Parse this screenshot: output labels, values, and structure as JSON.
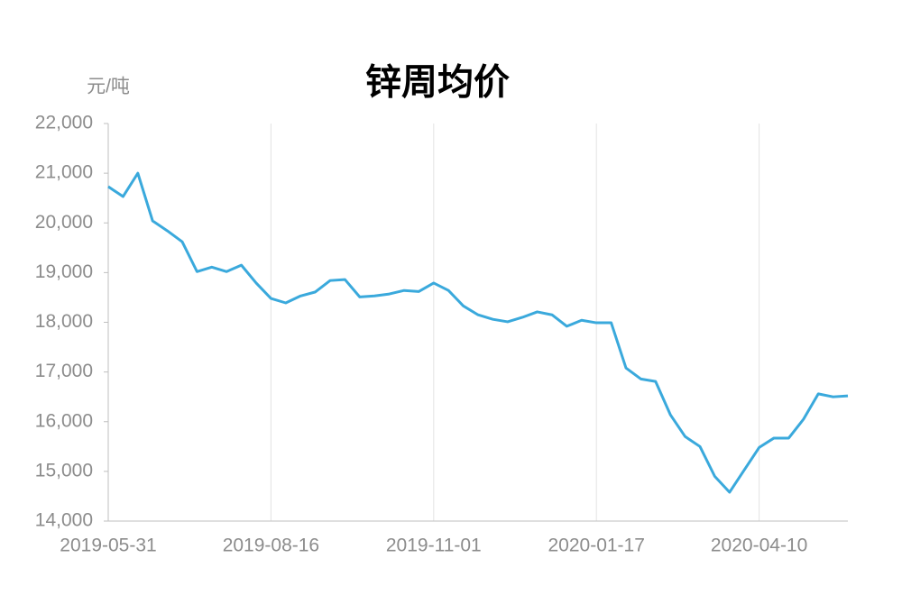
{
  "chart_data": {
    "type": "line",
    "title": "锌周均价",
    "y_unit": "元/吨",
    "categories": [
      "2019-05-31",
      null,
      null,
      null,
      null,
      null,
      null,
      null,
      null,
      null,
      null,
      "2019-08-16",
      null,
      null,
      null,
      null,
      null,
      null,
      null,
      null,
      null,
      null,
      "2019-11-01",
      null,
      null,
      null,
      null,
      null,
      null,
      null,
      null,
      null,
      null,
      "2020-01-17",
      null,
      null,
      null,
      null,
      null,
      null,
      null,
      null,
      null,
      null,
      "2020-04-10",
      null,
      null,
      null,
      null,
      null,
      null
    ],
    "series": [
      {
        "name": "锌周均价",
        "color": "#3aa9dc",
        "values": [
          20730,
          20530,
          21000,
          20040,
          19840,
          19620,
          19020,
          19110,
          19020,
          19150,
          18790,
          18480,
          18390,
          18530,
          18610,
          18840,
          18860,
          18510,
          18530,
          18570,
          18640,
          18620,
          18790,
          18640,
          18330,
          18150,
          18060,
          18010,
          18100,
          18210,
          18150,
          17920,
          18040,
          17990,
          17990,
          17080,
          16860,
          16810,
          16140,
          15700,
          15500,
          14900,
          14580,
          15030,
          15480,
          15670,
          15670,
          16050,
          16560,
          16500,
          16520
        ]
      }
    ],
    "ylim": [
      14000,
      22000
    ],
    "yticks": [
      {
        "value": 14000,
        "label": "14,000"
      },
      {
        "value": 15000,
        "label": "15,000"
      },
      {
        "value": 16000,
        "label": "16,000"
      },
      {
        "value": 17000,
        "label": "17,000"
      },
      {
        "value": 18000,
        "label": "18,000"
      },
      {
        "value": 19000,
        "label": "19,000"
      },
      {
        "value": 20000,
        "label": "20,000"
      },
      {
        "value": 21000,
        "label": "21,000"
      },
      {
        "value": 22000,
        "label": "22,000"
      }
    ],
    "grid": "x"
  }
}
